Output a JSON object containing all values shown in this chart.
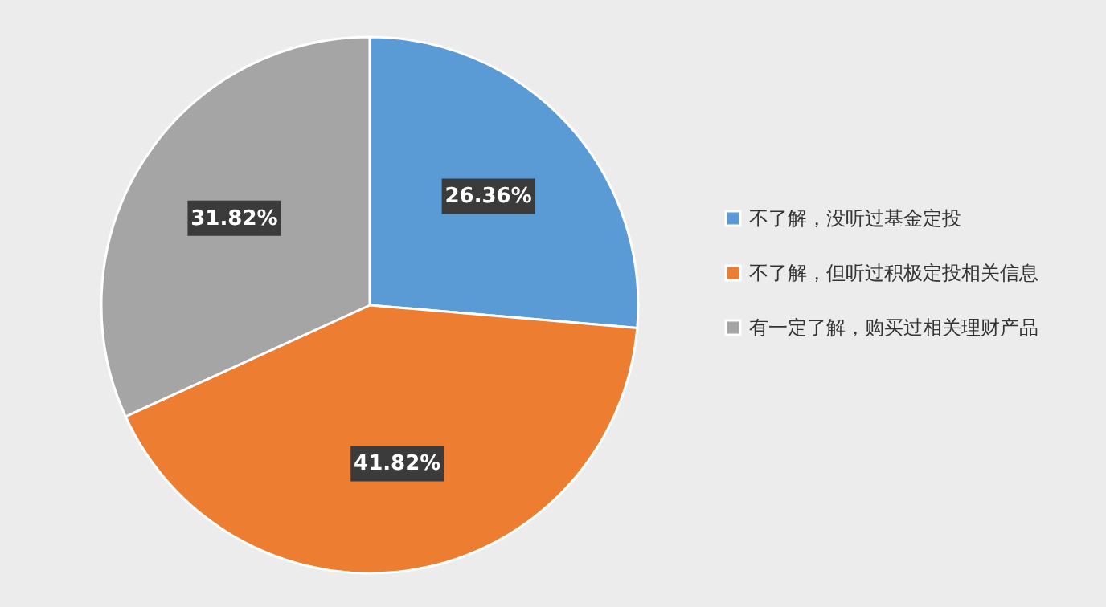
{
  "chart_data": {
    "type": "pie",
    "categories": [
      "不了解，没听过基金定投",
      "不了解，但听过积极定投相关信息",
      "有一定了解，购买过相关理财产品"
    ],
    "values": [
      26.36,
      41.82,
      31.82
    ],
    "colors": [
      "#5b9bd5",
      "#ed7d31",
      "#a5a5a5"
    ],
    "value_labels": [
      "26.36%",
      "41.82%",
      "31.82%"
    ],
    "legend": "right"
  }
}
